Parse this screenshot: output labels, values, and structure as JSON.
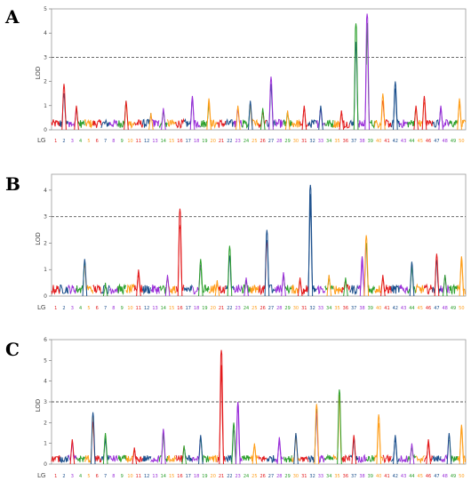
{
  "chart_data": [
    {
      "type": "line",
      "panel": "A",
      "xlabel": "LG",
      "ylabel": "LOD",
      "ylim": [
        0,
        5
      ],
      "yticks": [
        0,
        1,
        2,
        3,
        4,
        5
      ],
      "threshold": 3,
      "threshold_style": "dashed",
      "grid": false,
      "lg_labels": [
        "1",
        "2",
        "3",
        "4",
        "5",
        "6",
        "7",
        "8",
        "9",
        "10",
        "11",
        "12",
        "13",
        "14",
        "15",
        "16",
        "17",
        "18",
        "19",
        "20",
        "21",
        "22",
        "23",
        "24",
        "25",
        "26",
        "27",
        "28",
        "29",
        "30",
        "31",
        "32",
        "33",
        "34",
        "35",
        "36",
        "37",
        "38",
        "39",
        "40",
        "41",
        "42",
        "43",
        "44",
        "45",
        "46",
        "47",
        "48",
        "49",
        "50"
      ],
      "peaks": [
        {
          "x": 0.03,
          "y": 1.9,
          "color": "#e31a1c"
        },
        {
          "x": 0.06,
          "y": 1.0,
          "color": "#e31a1c"
        },
        {
          "x": 0.18,
          "y": 1.2,
          "color": "#e31a1c"
        },
        {
          "x": 0.24,
          "y": 0.7,
          "color": "#ff9f1c"
        },
        {
          "x": 0.27,
          "y": 0.9,
          "color": "#9b30d9"
        },
        {
          "x": 0.34,
          "y": 1.4,
          "color": "#9b30d9"
        },
        {
          "x": 0.38,
          "y": 1.3,
          "color": "#ff9f1c"
        },
        {
          "x": 0.45,
          "y": 1.0,
          "color": "#ff9f1c"
        },
        {
          "x": 0.48,
          "y": 1.2,
          "color": "#1b4f8c"
        },
        {
          "x": 0.51,
          "y": 0.9,
          "color": "#2ca02c"
        },
        {
          "x": 0.53,
          "y": 2.2,
          "color": "#9b30d9"
        },
        {
          "x": 0.57,
          "y": 0.8,
          "color": "#ff9f1c"
        },
        {
          "x": 0.61,
          "y": 1.0,
          "color": "#e31a1c"
        },
        {
          "x": 0.65,
          "y": 1.0,
          "color": "#1b4f8c"
        },
        {
          "x": 0.7,
          "y": 0.8,
          "color": "#e31a1c"
        },
        {
          "x": 0.735,
          "y": 4.4,
          "color": "#2ca02c"
        },
        {
          "x": 0.762,
          "y": 4.8,
          "color": "#9b30d9"
        },
        {
          "x": 0.8,
          "y": 1.5,
          "color": "#ff9f1c"
        },
        {
          "x": 0.83,
          "y": 2.0,
          "color": "#1b4f8c"
        },
        {
          "x": 0.88,
          "y": 1.0,
          "color": "#e31a1c"
        },
        {
          "x": 0.9,
          "y": 1.4,
          "color": "#e31a1c"
        },
        {
          "x": 0.94,
          "y": 1.0,
          "color": "#9b30d9"
        },
        {
          "x": 0.985,
          "y": 1.3,
          "color": "#ff9f1c"
        }
      ]
    },
    {
      "type": "line",
      "panel": "B",
      "xlabel": "LG",
      "ylabel": "LOD",
      "ylim": [
        0,
        4.6
      ],
      "yticks": [
        0,
        1,
        2,
        3,
        4
      ],
      "threshold": 3,
      "threshold_style": "dashed",
      "grid": false,
      "lg_labels": [
        "1",
        "2",
        "3",
        "4",
        "5",
        "6",
        "7",
        "8",
        "9",
        "10",
        "11",
        "12",
        "13",
        "14",
        "15",
        "16",
        "17",
        "18",
        "19",
        "20",
        "21",
        "22",
        "23",
        "24",
        "25",
        "26",
        "27",
        "28",
        "29",
        "30",
        "31",
        "32",
        "33",
        "34",
        "35",
        "36",
        "37",
        "38",
        "39",
        "40",
        "41",
        "42",
        "43",
        "44",
        "45",
        "46",
        "47",
        "48",
        "49",
        "50"
      ],
      "peaks": [
        {
          "x": 0.08,
          "y": 1.4,
          "color": "#1b4f8c"
        },
        {
          "x": 0.13,
          "y": 0.5,
          "color": "#2ca02c"
        },
        {
          "x": 0.21,
          "y": 1.0,
          "color": "#e31a1c"
        },
        {
          "x": 0.28,
          "y": 0.8,
          "color": "#9b30d9"
        },
        {
          "x": 0.31,
          "y": 3.3,
          "color": "#e31a1c"
        },
        {
          "x": 0.36,
          "y": 1.4,
          "color": "#2ca02c"
        },
        {
          "x": 0.4,
          "y": 0.6,
          "color": "#ff9f1c"
        },
        {
          "x": 0.43,
          "y": 1.9,
          "color": "#2ca02c"
        },
        {
          "x": 0.47,
          "y": 0.7,
          "color": "#9b30d9"
        },
        {
          "x": 0.52,
          "y": 2.5,
          "color": "#1b4f8c"
        },
        {
          "x": 0.56,
          "y": 0.9,
          "color": "#9b30d9"
        },
        {
          "x": 0.6,
          "y": 0.7,
          "color": "#e31a1c"
        },
        {
          "x": 0.625,
          "y": 4.2,
          "color": "#1b4f8c"
        },
        {
          "x": 0.67,
          "y": 0.8,
          "color": "#ff9f1c"
        },
        {
          "x": 0.71,
          "y": 0.7,
          "color": "#2ca02c"
        },
        {
          "x": 0.75,
          "y": 1.5,
          "color": "#9b30d9"
        },
        {
          "x": 0.76,
          "y": 2.3,
          "color": "#ff9f1c"
        },
        {
          "x": 0.8,
          "y": 0.8,
          "color": "#e31a1c"
        },
        {
          "x": 0.87,
          "y": 1.3,
          "color": "#1b4f8c"
        },
        {
          "x": 0.93,
          "y": 1.6,
          "color": "#e31a1c"
        },
        {
          "x": 0.95,
          "y": 0.8,
          "color": "#2ca02c"
        },
        {
          "x": 0.99,
          "y": 1.5,
          "color": "#ff9f1c"
        }
      ]
    },
    {
      "type": "line",
      "panel": "C",
      "xlabel": "LG",
      "ylabel": "LOD",
      "ylim": [
        0,
        6
      ],
      "yticks": [
        0,
        1,
        2,
        3,
        4,
        5,
        6
      ],
      "threshold": 3,
      "threshold_style": "dashed",
      "grid": false,
      "lg_labels": [
        "1",
        "2",
        "3",
        "4",
        "5",
        "6",
        "7",
        "8",
        "9",
        "10",
        "11",
        "12",
        "13",
        "14",
        "15",
        "16",
        "17",
        "18",
        "19",
        "20",
        "21",
        "22",
        "23",
        "24",
        "25",
        "26",
        "27",
        "28",
        "29",
        "30",
        "31",
        "32",
        "33",
        "34",
        "35",
        "36",
        "37",
        "38",
        "39",
        "40",
        "41",
        "42",
        "43",
        "44",
        "45",
        "46",
        "47",
        "48",
        "49",
        "50"
      ],
      "peaks": [
        {
          "x": 0.05,
          "y": 1.2,
          "color": "#e31a1c"
        },
        {
          "x": 0.1,
          "y": 2.5,
          "color": "#1b4f8c"
        },
        {
          "x": 0.13,
          "y": 1.5,
          "color": "#2ca02c"
        },
        {
          "x": 0.2,
          "y": 0.8,
          "color": "#e31a1c"
        },
        {
          "x": 0.27,
          "y": 1.7,
          "color": "#9b30d9"
        },
        {
          "x": 0.32,
          "y": 0.9,
          "color": "#2ca02c"
        },
        {
          "x": 0.36,
          "y": 1.4,
          "color": "#1b4f8c"
        },
        {
          "x": 0.41,
          "y": 5.5,
          "color": "#e31a1c"
        },
        {
          "x": 0.44,
          "y": 2.0,
          "color": "#2ca02c"
        },
        {
          "x": 0.45,
          "y": 3.0,
          "color": "#9b30d9"
        },
        {
          "x": 0.49,
          "y": 1.0,
          "color": "#ff9f1c"
        },
        {
          "x": 0.55,
          "y": 1.3,
          "color": "#9b30d9"
        },
        {
          "x": 0.59,
          "y": 1.5,
          "color": "#1b4f8c"
        },
        {
          "x": 0.64,
          "y": 2.9,
          "color": "#ff9f1c"
        },
        {
          "x": 0.695,
          "y": 3.6,
          "color": "#2ca02c"
        },
        {
          "x": 0.73,
          "y": 1.4,
          "color": "#e31a1c"
        },
        {
          "x": 0.79,
          "y": 2.4,
          "color": "#ff9f1c"
        },
        {
          "x": 0.83,
          "y": 1.4,
          "color": "#1b4f8c"
        },
        {
          "x": 0.87,
          "y": 1.0,
          "color": "#9b30d9"
        },
        {
          "x": 0.91,
          "y": 1.2,
          "color": "#e31a1c"
        },
        {
          "x": 0.96,
          "y": 1.5,
          "color": "#1b4f8c"
        },
        {
          "x": 0.99,
          "y": 1.9,
          "color": "#ff9f1c"
        }
      ]
    }
  ],
  "palette": [
    "#e31a1c",
    "#1b4f8c",
    "#9b30d9",
    "#2ca02c",
    "#ff9f1c"
  ]
}
